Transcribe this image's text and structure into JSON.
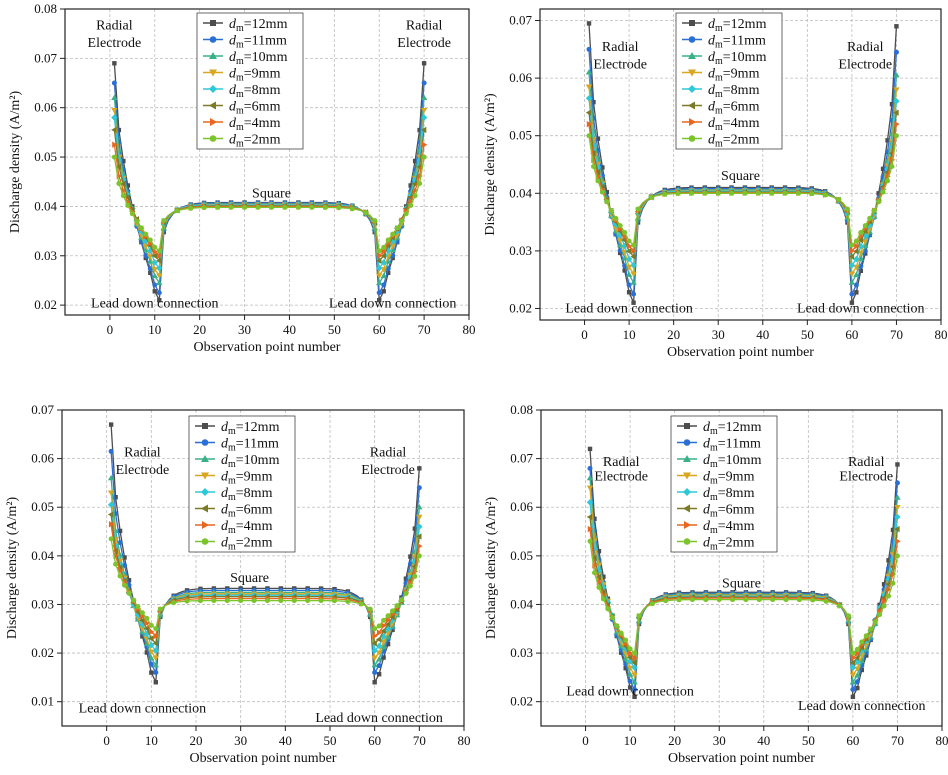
{
  "chart_data": [
    {
      "type": "line",
      "panel": "top-left",
      "xlabel": "Observation point number",
      "ylabel": "Discharge density (A/m²)",
      "xlim": [
        -10,
        80
      ],
      "ylim": [
        0.018,
        0.08
      ],
      "xticks": [
        0,
        10,
        20,
        30,
        40,
        50,
        60,
        70,
        80
      ],
      "yticks": [
        0.02,
        0.03,
        0.04,
        0.05,
        0.06,
        0.07,
        0.08
      ],
      "ytick_labels": [
        "0.02",
        "0.03",
        "0.04",
        "0.05",
        "0.06",
        "0.07",
        "0.08"
      ],
      "legend": {
        "position": "top-center"
      },
      "annotations": [
        {
          "text": "Radial",
          "x": 1,
          "y": 0.0758
        },
        {
          "text": "Electrode",
          "x": 1,
          "y": 0.0723
        },
        {
          "text": "Radial",
          "x": 70,
          "y": 0.0758
        },
        {
          "text": "Electrode",
          "x": 70,
          "y": 0.0723
        },
        {
          "text": "Square",
          "x": 36,
          "y": 0.0418
        },
        {
          "text": "Lead down connection",
          "x": 10,
          "y": 0.0195
        },
        {
          "text": "Lead down connection",
          "x": 63,
          "y": 0.0195
        }
      ],
      "series": [
        {
          "name": "=12mm",
          "edge_start": 0.069,
          "edge_end": 0.069,
          "dip": 0.021,
          "center": 0.0408,
          "color": "#4d4d4d",
          "marker": "square"
        },
        {
          "name": "=11mm",
          "edge_start": 0.065,
          "edge_end": 0.065,
          "dip": 0.0225,
          "center": 0.0407,
          "color": "#2a6fd6",
          "marker": "circle"
        },
        {
          "name": "=10mm",
          "edge_start": 0.062,
          "edge_end": 0.062,
          "dip": 0.0245,
          "center": 0.0405,
          "color": "#3ab08a",
          "marker": "triangle-up"
        },
        {
          "name": "=9mm",
          "edge_start": 0.0595,
          "edge_end": 0.0595,
          "dip": 0.026,
          "center": 0.0404,
          "color": "#d9a61f",
          "marker": "triangle-down"
        },
        {
          "name": "=8mm",
          "edge_start": 0.058,
          "edge_end": 0.058,
          "dip": 0.0275,
          "center": 0.0403,
          "color": "#2fc8d8",
          "marker": "diamond"
        },
        {
          "name": "=6mm",
          "edge_start": 0.0555,
          "edge_end": 0.0555,
          "dip": 0.029,
          "center": 0.0401,
          "color": "#7a7a28",
          "marker": "triangle-left"
        },
        {
          "name": "=4mm",
          "edge_start": 0.0525,
          "edge_end": 0.0525,
          "dip": 0.03,
          "center": 0.04,
          "color": "#e8661f",
          "marker": "triangle-right"
        },
        {
          "name": "=2mm",
          "edge_start": 0.05,
          "edge_end": 0.05,
          "dip": 0.031,
          "center": 0.0398,
          "color": "#7cc42c",
          "marker": "circle"
        }
      ]
    },
    {
      "type": "line",
      "panel": "top-right",
      "xlabel": "Observation point number",
      "ylabel": "Discharge density (A/m²)",
      "xlim": [
        -10,
        80
      ],
      "ylim": [
        0.018,
        0.072
      ],
      "xticks": [
        0,
        10,
        20,
        30,
        40,
        50,
        60,
        70,
        80
      ],
      "yticks": [
        0.02,
        0.03,
        0.04,
        0.05,
        0.06,
        0.07
      ],
      "ytick_labels": [
        "0.02",
        "0.03",
        "0.04",
        "0.05",
        "0.06",
        "0.07"
      ],
      "legend": {
        "position": "top-center"
      },
      "annotations": [
        {
          "text": "Radial",
          "x": 8,
          "y": 0.0647
        },
        {
          "text": "Electrode",
          "x": 8,
          "y": 0.0617
        },
        {
          "text": "Radial",
          "x": 63,
          "y": 0.0647
        },
        {
          "text": "Electrode",
          "x": 63,
          "y": 0.0617
        },
        {
          "text": "Square",
          "x": 35,
          "y": 0.0423
        },
        {
          "text": "Lead down connection",
          "x": 10,
          "y": 0.0193
        },
        {
          "text": "Lead down connection",
          "x": 62,
          "y": 0.0193
        }
      ],
      "series": [
        {
          "name": "=12mm",
          "edge_start": 0.0695,
          "edge_end": 0.069,
          "dip": 0.021,
          "center": 0.041,
          "color": "#4d4d4d",
          "marker": "square"
        },
        {
          "name": "=11mm",
          "edge_start": 0.065,
          "edge_end": 0.0645,
          "dip": 0.0225,
          "center": 0.0408,
          "color": "#2a6fd6",
          "marker": "circle"
        },
        {
          "name": "=10mm",
          "edge_start": 0.061,
          "edge_end": 0.0605,
          "dip": 0.0245,
          "center": 0.0406,
          "color": "#3ab08a",
          "marker": "triangle-up"
        },
        {
          "name": "=9mm",
          "edge_start": 0.0585,
          "edge_end": 0.058,
          "dip": 0.026,
          "center": 0.0405,
          "color": "#d9a61f",
          "marker": "triangle-down"
        },
        {
          "name": "=8mm",
          "edge_start": 0.0565,
          "edge_end": 0.056,
          "dip": 0.0275,
          "center": 0.0404,
          "color": "#2fc8d8",
          "marker": "diamond"
        },
        {
          "name": "=6mm",
          "edge_start": 0.054,
          "edge_end": 0.054,
          "dip": 0.029,
          "center": 0.0402,
          "color": "#7a7a28",
          "marker": "triangle-left"
        },
        {
          "name": "=4mm",
          "edge_start": 0.052,
          "edge_end": 0.052,
          "dip": 0.03,
          "center": 0.0401,
          "color": "#e8661f",
          "marker": "triangle-right"
        },
        {
          "name": "=2mm",
          "edge_start": 0.05,
          "edge_end": 0.05,
          "dip": 0.031,
          "center": 0.04,
          "color": "#7cc42c",
          "marker": "circle"
        }
      ]
    },
    {
      "type": "line",
      "panel": "bottom-left",
      "xlabel": "Observation point number",
      "ylabel": "Discharge density (A/m²)",
      "xlim": [
        -10,
        80
      ],
      "ylim": [
        0.005,
        0.07
      ],
      "xticks": [
        0,
        10,
        20,
        30,
        40,
        50,
        60,
        70,
        80
      ],
      "yticks": [
        0.01,
        0.02,
        0.03,
        0.04,
        0.05,
        0.06,
        0.07
      ],
      "ytick_labels": [
        "0.01",
        "0.02",
        "0.03",
        "0.04",
        "0.05",
        "0.06",
        "0.07"
      ],
      "legend": {
        "position": "top-center"
      },
      "annotations": [
        {
          "text": "Radial",
          "x": 8,
          "y": 0.0604
        },
        {
          "text": "Electrode",
          "x": 8,
          "y": 0.0568
        },
        {
          "text": "Radial",
          "x": 63,
          "y": 0.0604
        },
        {
          "text": "Electrode",
          "x": 63,
          "y": 0.0568
        },
        {
          "text": "Square",
          "x": 32,
          "y": 0.0346
        },
        {
          "text": "Lead down connection",
          "x": 8,
          "y": 0.0078
        },
        {
          "text": "Lead down connection",
          "x": 61,
          "y": 0.0058
        }
      ],
      "series": [
        {
          "name": "=12mm",
          "edge_start": 0.067,
          "edge_end": 0.058,
          "dip": 0.014,
          "center": 0.0333,
          "color": "#4d4d4d",
          "marker": "square"
        },
        {
          "name": "=11mm",
          "edge_start": 0.0615,
          "edge_end": 0.054,
          "dip": 0.016,
          "center": 0.0329,
          "color": "#2a6fd6",
          "marker": "circle"
        },
        {
          "name": "=10mm",
          "edge_start": 0.056,
          "edge_end": 0.05,
          "dip": 0.0175,
          "center": 0.0325,
          "color": "#3ab08a",
          "marker": "triangle-up"
        },
        {
          "name": "=9mm",
          "edge_start": 0.053,
          "edge_end": 0.048,
          "dip": 0.019,
          "center": 0.0322,
          "color": "#d9a61f",
          "marker": "triangle-down"
        },
        {
          "name": "=8mm",
          "edge_start": 0.0505,
          "edge_end": 0.046,
          "dip": 0.0205,
          "center": 0.0319,
          "color": "#2fc8d8",
          "marker": "diamond"
        },
        {
          "name": "=6mm",
          "edge_start": 0.0485,
          "edge_end": 0.044,
          "dip": 0.022,
          "center": 0.0316,
          "color": "#7a7a28",
          "marker": "triangle-left"
        },
        {
          "name": "=4mm",
          "edge_start": 0.0465,
          "edge_end": 0.042,
          "dip": 0.0235,
          "center": 0.0312,
          "color": "#e8661f",
          "marker": "triangle-right"
        },
        {
          "name": "=2mm",
          "edge_start": 0.0435,
          "edge_end": 0.04,
          "dip": 0.025,
          "center": 0.0308,
          "color": "#7cc42c",
          "marker": "circle"
        }
      ]
    },
    {
      "type": "line",
      "panel": "bottom-right",
      "xlabel": "Observation point number",
      "ylabel": "Discharge density (A/m²)",
      "xlim": [
        -10,
        80
      ],
      "ylim": [
        0.015,
        0.08
      ],
      "xticks": [
        0,
        10,
        20,
        30,
        40,
        50,
        60,
        70,
        80
      ],
      "yticks": [
        0.02,
        0.03,
        0.04,
        0.05,
        0.06,
        0.07,
        0.08
      ],
      "ytick_labels": [
        "0.02",
        "0.03",
        "0.04",
        "0.05",
        "0.06",
        "0.07",
        "0.08"
      ],
      "legend": {
        "position": "top-center"
      },
      "annotations": [
        {
          "text": "Radial",
          "x": 8,
          "y": 0.0685
        },
        {
          "text": "Electrode",
          "x": 8,
          "y": 0.0655
        },
        {
          "text": "Radial",
          "x": 63,
          "y": 0.0685
        },
        {
          "text": "Electrode",
          "x": 63,
          "y": 0.0655
        },
        {
          "text": "Square",
          "x": 35,
          "y": 0.0435
        },
        {
          "text": "Lead down connection",
          "x": 10,
          "y": 0.0213
        },
        {
          "text": "Lead down connection",
          "x": 62,
          "y": 0.0183
        }
      ],
      "series": [
        {
          "name": "=12mm",
          "edge_start": 0.072,
          "edge_end": 0.0688,
          "dip": 0.021,
          "center": 0.0425,
          "color": "#4d4d4d",
          "marker": "square"
        },
        {
          "name": "=11mm",
          "edge_start": 0.068,
          "edge_end": 0.065,
          "dip": 0.0225,
          "center": 0.0423,
          "color": "#2a6fd6",
          "marker": "circle"
        },
        {
          "name": "=10mm",
          "edge_start": 0.066,
          "edge_end": 0.062,
          "dip": 0.024,
          "center": 0.0421,
          "color": "#3ab08a",
          "marker": "triangle-up"
        },
        {
          "name": "=9mm",
          "edge_start": 0.064,
          "edge_end": 0.06,
          "dip": 0.0255,
          "center": 0.0419,
          "color": "#d9a61f",
          "marker": "triangle-down"
        },
        {
          "name": "=8mm",
          "edge_start": 0.061,
          "edge_end": 0.058,
          "dip": 0.027,
          "center": 0.0417,
          "color": "#2fc8d8",
          "marker": "diamond"
        },
        {
          "name": "=6mm",
          "edge_start": 0.058,
          "edge_end": 0.0555,
          "dip": 0.028,
          "center": 0.0415,
          "color": "#7a7a28",
          "marker": "triangle-left"
        },
        {
          "name": "=4mm",
          "edge_start": 0.0555,
          "edge_end": 0.053,
          "dip": 0.029,
          "center": 0.0413,
          "color": "#e8661f",
          "marker": "triangle-right"
        },
        {
          "name": "=2mm",
          "edge_start": 0.053,
          "edge_end": 0.05,
          "dip": 0.03,
          "center": 0.041,
          "color": "#7cc42c",
          "marker": "circle"
        }
      ]
    }
  ]
}
